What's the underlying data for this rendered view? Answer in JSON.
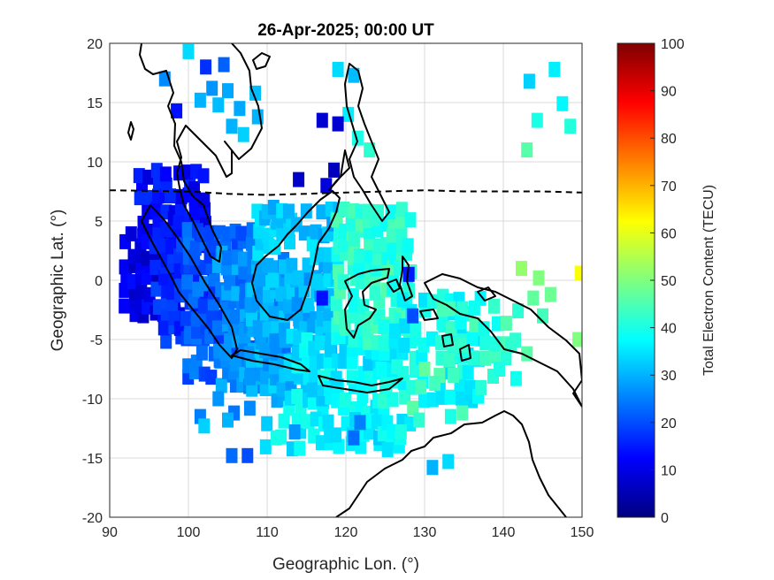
{
  "chart_data": {
    "type": "heatmap",
    "title": "26-Apr-2025; 00:00 UT",
    "xlabel": "Geographic Lon. (°)",
    "ylabel": "Geographic Lat. (°)",
    "xlim": [
      90,
      150
    ],
    "ylim": [
      -20,
      20
    ],
    "xticks": [
      "90",
      "100",
      "110",
      "120",
      "130",
      "140",
      "150"
    ],
    "yticks": [
      "20",
      "15",
      "10",
      "5",
      "0",
      "-5",
      "-10",
      "-15",
      "-20"
    ],
    "grid": true,
    "colorbar": {
      "label": "Total Electron Content (TECU)",
      "range": [
        0,
        100
      ],
      "ticks": [
        "0",
        "10",
        "20",
        "30",
        "40",
        "50",
        "60",
        "70",
        "80",
        "90",
        "100"
      ],
      "colormap": "jet"
    },
    "dashed_line": [
      [
        90,
        7.6
      ],
      [
        100,
        7.5
      ],
      [
        105,
        7.3
      ],
      [
        110,
        7.2
      ],
      [
        115,
        7.3
      ],
      [
        120,
        7.4
      ],
      [
        125,
        7.5
      ],
      [
        130,
        7.6
      ],
      [
        135,
        7.5
      ],
      [
        140,
        7.5
      ],
      [
        145,
        7.5
      ],
      [
        150,
        7.4
      ]
    ],
    "regions": [
      {
        "lon": [
          92,
          99
        ],
        "lat": [
          -3,
          4
        ],
        "tec": 10,
        "step": 1.0
      },
      {
        "lon": [
          94,
          102
        ],
        "lat": [
          3,
          9.5
        ],
        "tec": 13,
        "step": 1.0
      },
      {
        "lon": [
          96,
          104
        ],
        "lat": [
          -5,
          3
        ],
        "tec": 17,
        "step": 1.0
      },
      {
        "lon": [
          100,
          108
        ],
        "lat": [
          -8,
          4
        ],
        "tec": 22,
        "step": 1.0
      },
      {
        "lon": [
          104,
          112
        ],
        "lat": [
          -9,
          2
        ],
        "tec": 27,
        "step": 1.0
      },
      {
        "lon": [
          108,
          118
        ],
        "lat": [
          -10,
          0
        ],
        "tec": 30,
        "step": 1.0
      },
      {
        "lon": [
          109,
          119
        ],
        "lat": [
          0,
          6
        ],
        "tec": 32,
        "step": 1.0
      },
      {
        "lon": [
          113,
          125
        ],
        "lat": [
          -11,
          -5
        ],
        "tec": 36,
        "step": 1.0
      },
      {
        "lon": [
          119,
          128
        ],
        "lat": [
          -5,
          6
        ],
        "tec": 42,
        "step": 1.0
      },
      {
        "lon": [
          125,
          137
        ],
        "lat": [
          -10,
          -1
        ],
        "tec": 38,
        "step": 1.2
      },
      {
        "lon": [
          132,
          143
        ],
        "lat": [
          -8,
          -1
        ],
        "tec": 42,
        "step": 1.4
      },
      {
        "lon": [
          110,
          128
        ],
        "lat": [
          -14,
          -11.5
        ],
        "tec": 36,
        "step": 1.0
      }
    ],
    "scattered_points": [
      {
        "lon": 100,
        "lat": 19.3,
        "tec": 34
      },
      {
        "lon": 102.2,
        "lat": 18,
        "tec": 17
      },
      {
        "lon": 104.5,
        "lat": 18.2,
        "tec": 22
      },
      {
        "lon": 97,
        "lat": 17,
        "tec": 26
      },
      {
        "lon": 103,
        "lat": 16.2,
        "tec": 27
      },
      {
        "lon": 105,
        "lat": 16,
        "tec": 29
      },
      {
        "lon": 101.5,
        "lat": 15.2,
        "tec": 30
      },
      {
        "lon": 103.8,
        "lat": 14.8,
        "tec": 31
      },
      {
        "lon": 106.5,
        "lat": 14.5,
        "tec": 29
      },
      {
        "lon": 98.5,
        "lat": 14.3,
        "tec": 14
      },
      {
        "lon": 105.5,
        "lat": 13,
        "tec": 30
      },
      {
        "lon": 107,
        "lat": 12.3,
        "tec": 33
      },
      {
        "lon": 108.5,
        "lat": 15.8,
        "tec": 31
      },
      {
        "lon": 108.8,
        "lat": 13.8,
        "tec": 30
      },
      {
        "lon": 119,
        "lat": 17.8,
        "tec": 34
      },
      {
        "lon": 121,
        "lat": 17.3,
        "tec": 31
      },
      {
        "lon": 120.3,
        "lat": 14,
        "tec": 36
      },
      {
        "lon": 121.5,
        "lat": 12,
        "tec": 40
      },
      {
        "lon": 123,
        "lat": 11,
        "tec": 42
      },
      {
        "lon": 117,
        "lat": 13.5,
        "tec": 8
      },
      {
        "lon": 119,
        "lat": 13.2,
        "tec": 8
      },
      {
        "lon": 118.5,
        "lat": 9.3,
        "tec": 6
      },
      {
        "lon": 114,
        "lat": 8.5,
        "tec": 7
      },
      {
        "lon": 117.5,
        "lat": 8.0,
        "tec": 9
      },
      {
        "lon": 146.5,
        "lat": 17.8,
        "tec": 36
      },
      {
        "lon": 143.3,
        "lat": 16.8,
        "tec": 33
      },
      {
        "lon": 147.5,
        "lat": 14.9,
        "tec": 37
      },
      {
        "lon": 144.3,
        "lat": 13.5,
        "tec": 40
      },
      {
        "lon": 148.5,
        "lat": 13,
        "tec": 41
      },
      {
        "lon": 143,
        "lat": 11,
        "tec": 46
      },
      {
        "lon": 142.3,
        "lat": 1.0,
        "tec": 52
      },
      {
        "lon": 144.5,
        "lat": 0.2,
        "tec": 50
      },
      {
        "lon": 149.8,
        "lat": 0.6,
        "tec": 62
      },
      {
        "lon": 143.8,
        "lat": -1.5,
        "tec": 47
      },
      {
        "lon": 146,
        "lat": -1.2,
        "tec": 48
      },
      {
        "lon": 145,
        "lat": -3,
        "tec": 44
      },
      {
        "lon": 149.5,
        "lat": -5,
        "tec": 50
      },
      {
        "lon": 141,
        "lat": -5.5,
        "tec": 42
      },
      {
        "lon": 139.5,
        "lat": -7.5,
        "tec": 40
      },
      {
        "lon": 143,
        "lat": -6.2,
        "tec": 46
      },
      {
        "lon": 101.5,
        "lat": -11.5,
        "tec": 25
      },
      {
        "lon": 103.8,
        "lat": -10,
        "tec": 27
      },
      {
        "lon": 105.8,
        "lat": -11.2,
        "tec": 24
      },
      {
        "lon": 107.8,
        "lat": -10.8,
        "tec": 26
      },
      {
        "lon": 102,
        "lat": -12.3,
        "tec": 33
      },
      {
        "lon": 105,
        "lat": -11.8,
        "tec": 30
      },
      {
        "lon": 107.5,
        "lat": -14.8,
        "tec": 20
      },
      {
        "lon": 105.5,
        "lat": -14.8,
        "tec": 23
      },
      {
        "lon": 113.5,
        "lat": -12.8,
        "tec": 27
      },
      {
        "lon": 121,
        "lat": -13.3,
        "tec": 23
      },
      {
        "lon": 125.3,
        "lat": -14.3,
        "tec": 35
      },
      {
        "lon": 127,
        "lat": -12.8,
        "tec": 40
      },
      {
        "lon": 128.5,
        "lat": -10.8,
        "tec": 46
      },
      {
        "lon": 129.5,
        "lat": -9,
        "tec": 44
      },
      {
        "lon": 131.3,
        "lat": -8.7,
        "tec": 44
      },
      {
        "lon": 134.8,
        "lat": -11.2,
        "tec": 45
      },
      {
        "lon": 133.3,
        "lat": -11.5,
        "tec": 40
      },
      {
        "lon": 129.3,
        "lat": -11.8,
        "tec": 42
      },
      {
        "lon": 130,
        "lat": -7.5,
        "tec": 47
      },
      {
        "lon": 133,
        "lat": -15.3,
        "tec": 34
      },
      {
        "lon": 131,
        "lat": -15.8,
        "tec": 30
      },
      {
        "lon": 124.5,
        "lat": -7.5,
        "tec": 38
      },
      {
        "lon": 126.5,
        "lat": -7.3,
        "tec": 40
      },
      {
        "lon": 121.8,
        "lat": -12,
        "tec": 25
      },
      {
        "lon": 128.5,
        "lat": -3,
        "tec": 20
      },
      {
        "lon": 128,
        "lat": 0.5,
        "tec": 15
      },
      {
        "lon": 121,
        "lat": 3.5,
        "tec": 42
      },
      {
        "lon": 117,
        "lat": -1.5,
        "tec": 14
      }
    ]
  }
}
